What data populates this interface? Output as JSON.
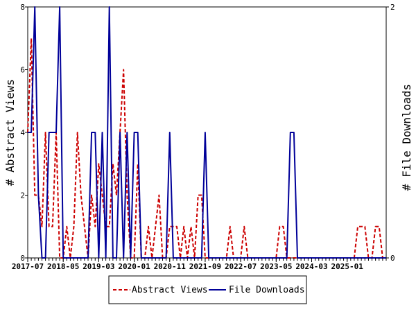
{
  "chart_data": {
    "type": "line",
    "title": "",
    "xlabel": "",
    "ylabel_left": "# Abstract Views",
    "ylabel_right": "# File Downloads",
    "ylim_left": [
      0,
      8
    ],
    "ylim_right": [
      0,
      2
    ],
    "yticks_left": [
      "0",
      "2",
      "4",
      "6",
      "8"
    ],
    "yticks_right": [
      "0",
      "2"
    ],
    "x_range": [
      "2017-07",
      "2025-12"
    ],
    "xticks": [
      "2017-07",
      "2018-05",
      "2019-03",
      "2020-01",
      "2020-11",
      "2021-09",
      "2022-07",
      "2023-05",
      "2024-03",
      "2025-01"
    ],
    "grid": false,
    "legend_position": "bottom-center",
    "series": [
      {
        "name": "Abstract Views",
        "axis": "left",
        "color": "#cc0000",
        "dash": "dashed",
        "x": [
          "2017-07",
          "2017-08",
          "2017-09",
          "2017-10",
          "2017-11",
          "2017-12",
          "2018-01",
          "2018-02",
          "2018-03",
          "2018-04",
          "2018-05",
          "2018-06",
          "2018-07",
          "2018-08",
          "2018-09",
          "2018-10",
          "2018-11",
          "2018-12",
          "2019-01",
          "2019-02",
          "2019-03",
          "2019-04",
          "2019-05",
          "2019-06",
          "2019-07",
          "2019-08",
          "2019-09",
          "2019-10",
          "2019-11",
          "2019-12",
          "2020-01",
          "2020-02",
          "2020-03",
          "2020-04",
          "2020-05",
          "2020-06",
          "2020-07",
          "2020-08",
          "2020-09",
          "2020-10",
          "2020-11",
          "2020-12",
          "2021-01",
          "2021-02",
          "2021-03",
          "2021-04",
          "2021-05",
          "2021-06",
          "2021-07",
          "2021-08",
          "2021-09",
          "2021-10",
          "2021-11",
          "2021-12",
          "2022-01",
          "2022-02",
          "2022-03",
          "2022-04",
          "2022-05",
          "2022-06",
          "2022-07",
          "2022-08",
          "2022-09",
          "2022-10",
          "2022-11",
          "2022-12",
          "2023-01",
          "2023-02",
          "2023-03",
          "2023-04",
          "2023-05",
          "2023-06",
          "2023-07",
          "2023-08",
          "2023-09",
          "2023-10",
          "2023-11",
          "2023-12",
          "2024-01",
          "2024-02",
          "2024-03",
          "2024-04",
          "2024-05",
          "2024-06",
          "2024-07",
          "2024-08",
          "2024-09",
          "2024-10",
          "2024-11",
          "2024-12",
          "2025-01",
          "2025-02",
          "2025-03",
          "2025-04",
          "2025-05",
          "2025-06",
          "2025-07",
          "2025-08",
          "2025-09",
          "2025-10",
          "2025-11",
          "2025-12"
        ],
        "values": [
          4,
          7,
          2,
          2,
          1,
          4,
          1,
          1,
          4,
          0,
          0,
          1,
          0,
          1,
          4,
          2,
          1,
          0,
          2,
          1,
          3,
          2,
          1,
          1,
          3,
          2,
          4,
          6,
          2,
          0,
          0,
          3,
          0,
          0,
          1,
          0,
          1,
          2,
          0,
          0,
          1,
          1,
          1,
          0,
          1,
          0,
          1,
          0,
          2,
          2,
          0,
          0,
          0,
          0,
          0,
          0,
          0,
          1,
          0,
          0,
          0,
          1,
          0,
          0,
          0,
          0,
          0,
          0,
          0,
          0,
          0,
          1,
          1,
          0,
          0,
          0,
          0,
          0,
          0,
          0,
          0,
          0,
          0,
          0,
          0,
          0,
          0,
          0,
          0,
          0,
          0,
          0,
          0,
          1,
          1,
          1,
          0,
          0,
          1,
          1,
          0,
          0
        ]
      },
      {
        "name": "File Downloads",
        "axis": "right",
        "color": "#000099",
        "dash": "solid",
        "x": [
          "2017-07",
          "2017-08",
          "2017-09",
          "2017-10",
          "2017-11",
          "2017-12",
          "2018-01",
          "2018-02",
          "2018-03",
          "2018-04",
          "2018-05",
          "2018-06",
          "2018-07",
          "2018-08",
          "2018-09",
          "2018-10",
          "2018-11",
          "2018-12",
          "2019-01",
          "2019-02",
          "2019-03",
          "2019-04",
          "2019-05",
          "2019-06",
          "2019-07",
          "2019-08",
          "2019-09",
          "2019-10",
          "2019-11",
          "2019-12",
          "2020-01",
          "2020-02",
          "2020-03",
          "2020-04",
          "2020-05",
          "2020-06",
          "2020-07",
          "2020-08",
          "2020-09",
          "2020-10",
          "2020-11",
          "2020-12",
          "2021-01",
          "2021-02",
          "2021-03",
          "2021-04",
          "2021-05",
          "2021-06",
          "2021-07",
          "2021-08",
          "2021-09",
          "2021-10",
          "2021-11",
          "2021-12",
          "2022-01",
          "2022-02",
          "2022-03",
          "2022-04",
          "2022-05",
          "2022-06",
          "2022-07",
          "2022-08",
          "2022-09",
          "2022-10",
          "2022-11",
          "2022-12",
          "2023-01",
          "2023-02",
          "2023-03",
          "2023-04",
          "2023-05",
          "2023-06",
          "2023-07",
          "2023-08",
          "2023-09",
          "2023-10",
          "2023-11",
          "2023-12",
          "2024-01",
          "2024-02",
          "2024-03",
          "2024-04",
          "2024-05",
          "2024-06",
          "2024-07",
          "2024-08",
          "2024-09",
          "2024-10",
          "2024-11",
          "2024-12",
          "2025-01",
          "2025-02",
          "2025-03",
          "2025-04",
          "2025-05",
          "2025-06",
          "2025-07",
          "2025-08",
          "2025-09",
          "2025-10",
          "2025-11",
          "2025-12"
        ],
        "values": [
          1,
          1,
          2,
          0.5,
          0,
          0,
          1,
          1,
          1,
          2,
          0,
          0,
          0,
          0,
          0,
          0,
          0,
          0,
          1,
          1,
          0,
          1,
          0,
          2,
          0,
          0,
          1,
          0,
          1,
          0,
          1,
          1,
          0,
          0,
          0,
          0,
          0,
          0,
          0,
          0,
          1,
          0,
          0,
          0,
          0,
          0,
          0,
          0,
          0,
          0,
          1,
          0,
          0,
          0,
          0,
          0,
          0,
          0,
          0,
          0,
          0,
          0,
          0,
          0,
          0,
          0,
          0,
          0,
          0,
          0,
          0,
          0,
          0,
          0,
          1,
          1,
          0,
          0,
          0,
          0,
          0,
          0,
          0,
          0,
          0,
          0,
          0,
          0,
          0,
          0,
          0,
          0,
          0,
          0,
          0,
          0,
          0,
          0,
          0,
          0,
          0,
          0
        ]
      }
    ]
  }
}
